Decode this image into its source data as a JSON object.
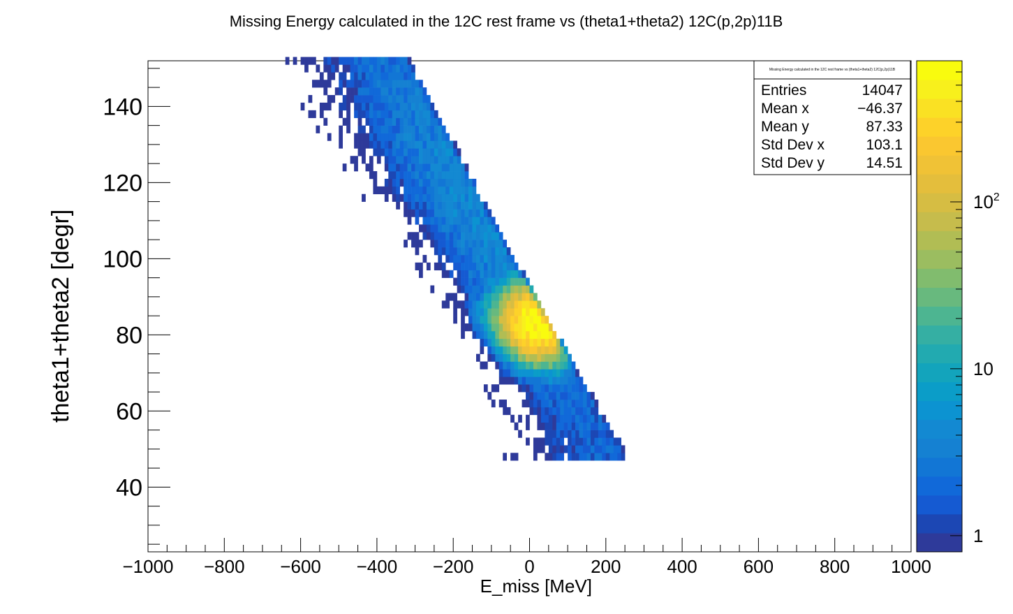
{
  "chart_data": {
    "type": "heatmap",
    "title": "Missing Energy calculated in the 12C rest frame vs (theta1+theta2) 12C(p,2p)11B",
    "xlabel": "E_miss [MeV]",
    "ylabel": "theta1+theta2 [degr]",
    "xlim": [
      -1000,
      1000
    ],
    "ylim": [
      23,
      152
    ],
    "x_ticks": [
      -1000,
      -800,
      -600,
      -400,
      -200,
      0,
      200,
      400,
      600,
      800,
      1000
    ],
    "x_tick_labels": [
      "−1000",
      "−800",
      "−600",
      "−400",
      "−200",
      "0",
      "200",
      "400",
      "600",
      "800",
      "1000"
    ],
    "y_ticks": [
      40,
      60,
      80,
      100,
      120,
      140
    ],
    "y_tick_labels": [
      "40",
      "60",
      "80",
      "100",
      "120",
      "140"
    ],
    "colorbar": {
      "scale": "log",
      "range": [
        0.8,
        700
      ],
      "tick_values": [
        1,
        10,
        100
      ],
      "tick_labels": [
        "1",
        "10",
        "10^2"
      ],
      "palette": [
        "#2e3a9a",
        "#1c47b4",
        "#155ad2",
        "#1169d9",
        "#1276d5",
        "#1581d2",
        "#1389d2",
        "#0c93d1",
        "#0b9dc8",
        "#13a4bc",
        "#22aab0",
        "#35afa3",
        "#4db591",
        "#68b97e",
        "#81bc6e",
        "#9bbd60",
        "#b1bd54",
        "#c6bc4c",
        "#d6bd43",
        "#e4be3c",
        "#f0c236",
        "#fac730",
        "#fdd229",
        "#fae123",
        "#f8f01c",
        "#f9fb0e"
      ]
    },
    "band": {
      "description": "diagonal correlation band",
      "peak": {
        "x": 10,
        "y": 82,
        "counts": 600
      },
      "ridge_slope_deg_per_MeV": -0.19
    }
  },
  "stats_box": {
    "title": "Missing Energy calculated in the 12C rest frame vs (theta1+theta2) 12C(p,2p)11B",
    "rows": [
      {
        "label": "Entries",
        "value": "14047"
      },
      {
        "label": "Mean x",
        "value": "−46.37"
      },
      {
        "label": "Mean y",
        "value": "87.33"
      },
      {
        "label": "Std Dev x",
        "value": "103.1"
      },
      {
        "label": "Std Dev y",
        "value": "14.51"
      }
    ]
  }
}
